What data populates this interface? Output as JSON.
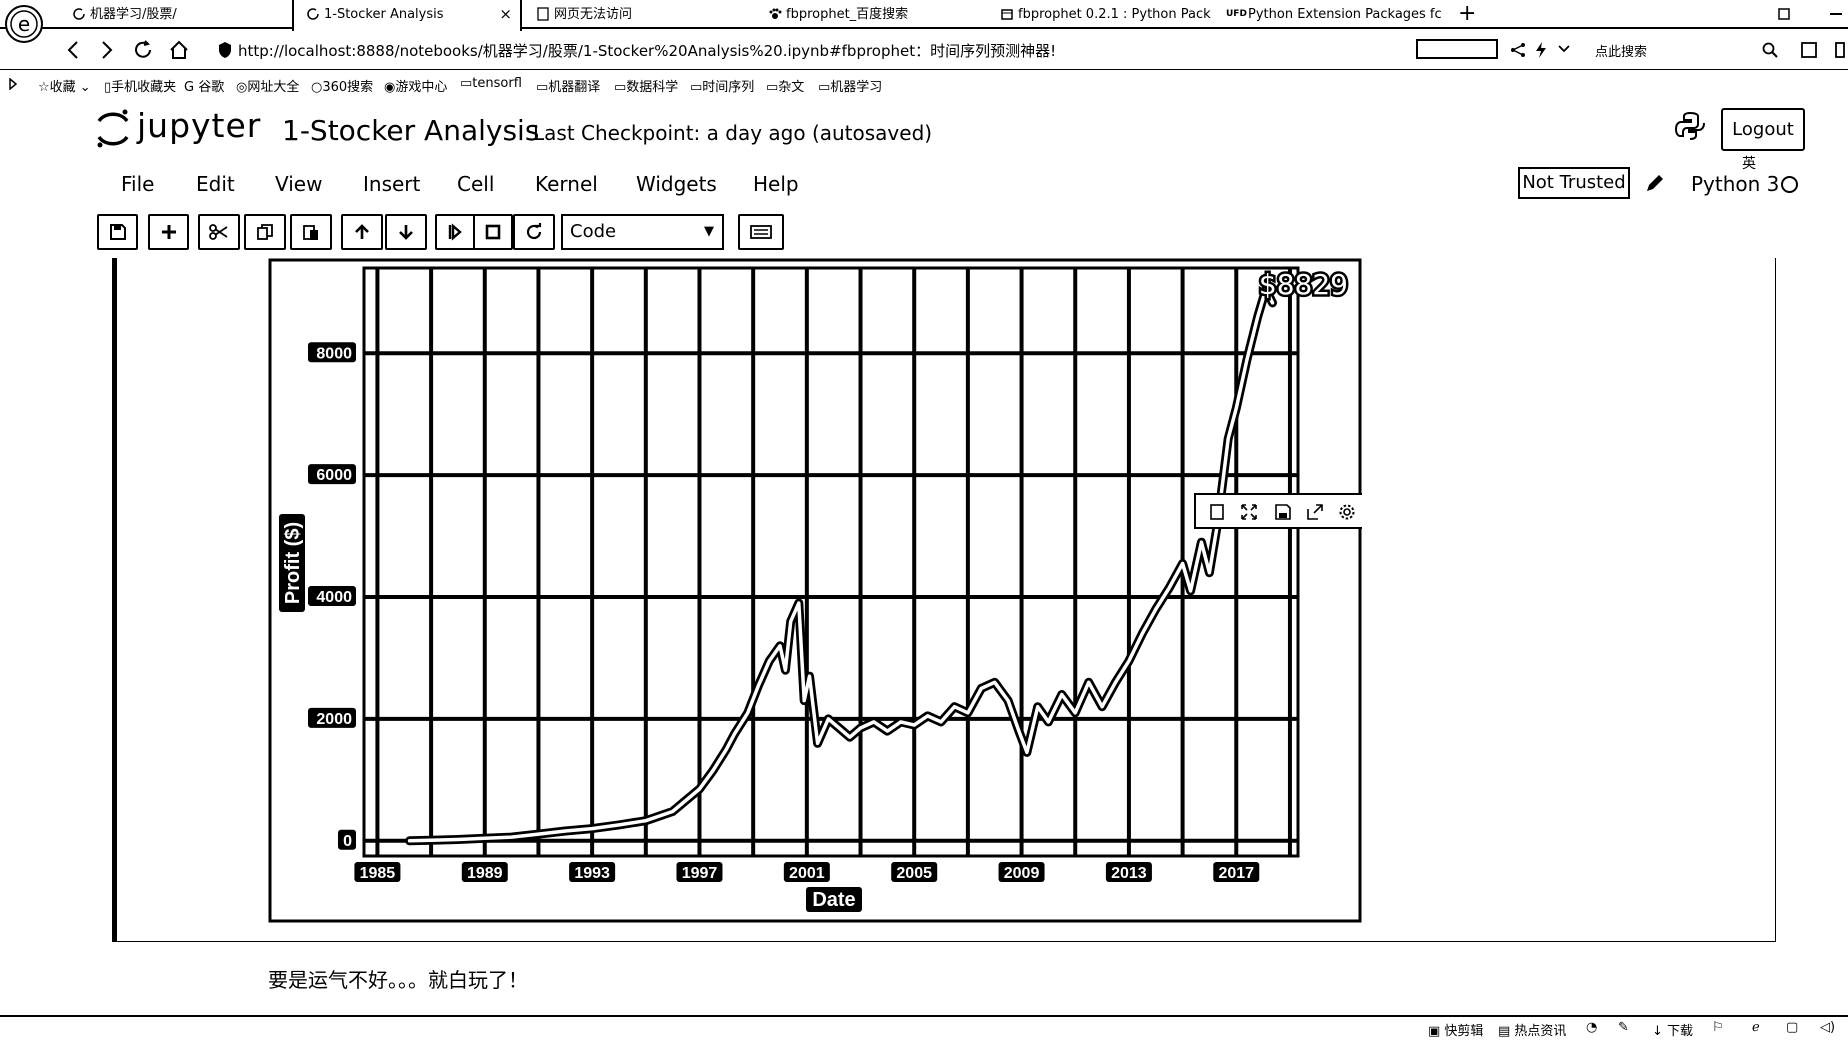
{
  "browser": {
    "tabs": [
      {
        "title": "机器学习/股票/",
        "active": false
      },
      {
        "title": "1-Stocker Analysis",
        "active": true
      },
      {
        "title": "网页无法访问",
        "active": false
      },
      {
        "title": "fbprophet_百度搜索",
        "active": false
      },
      {
        "title": "fbprophet 0.2.1 : Python Pack",
        "active": false
      },
      {
        "title": "Python Extension Packages fc",
        "active": false
      }
    ],
    "ufd_label": "UFD",
    "url": "http://localhost:8888/notebooks/机器学习/股票/1-Stocker%20Analysis%20.ipynb#fbprophet：时间序列预测神器!",
    "search_label": "点此搜索",
    "bookmarks": [
      "收藏",
      "手机收藏夹",
      "谷歌",
      "网址大全",
      "360搜索",
      "游戏中心",
      "tensorfl",
      "机器翻译",
      "数据科学",
      "时间序列",
      "杂文",
      "机器学习"
    ],
    "ext_label": "英"
  },
  "jupyter": {
    "logo_text": "jupyter",
    "notebook_title": "1-Stocker Analysis",
    "checkpoint": "Last Checkpoint: a day ago (autosaved)",
    "logout": "Logout",
    "menu": [
      "File",
      "Edit",
      "View",
      "Insert",
      "Cell",
      "Kernel",
      "Widgets",
      "Help"
    ],
    "not_trusted": "Not Trusted",
    "kernel_name": "Python 3",
    "cell_type": "Code"
  },
  "toolbar_icons": [
    "save-icon",
    "plus-icon",
    "scissors-icon",
    "copy-icon",
    "paste-icon",
    "arrow-up-icon",
    "arrow-down-icon",
    "step-forward-icon",
    "stop-icon",
    "restart-icon",
    "keyboard-icon"
  ],
  "modebar_icons": [
    "download-plot-icon",
    "autoscale-icon",
    "save-icon",
    "edit-in-chart-studio-icon",
    "settings-icon"
  ],
  "chart_data": {
    "type": "line",
    "title": "",
    "xlabel": "Date",
    "ylabel": "Profit ($)",
    "xlim": [
      1984.5,
      2019.3
    ],
    "ylim": [
      -250,
      9400
    ],
    "xticks": [
      "1985",
      "1989",
      "1993",
      "1997",
      "2001",
      "2005",
      "2009",
      "2013",
      "2017"
    ],
    "yticks": [
      "0",
      "2000",
      "4000",
      "6000",
      "8000"
    ],
    "annotation": "$8829",
    "grid": true,
    "series": [
      {
        "x": [
          1986.2,
          1987,
          1988,
          1989,
          1990,
          1991,
          1992,
          1993,
          1994,
          1995,
          1996,
          1997,
          1997.5,
          1998,
          1998.3,
          1998.8,
          1999.2,
          1999.6,
          2000,
          2000.2,
          2000.4,
          2000.7,
          2000.9,
          2001.1,
          2001.4,
          2001.8,
          2002.2,
          2002.6,
          2003,
          2003.5,
          2004,
          2004.5,
          2005,
          2005.5,
          2006,
          2006.5,
          2007,
          2007.5,
          2008,
          2008.5,
          2008.9,
          2009.2,
          2009.6,
          2010,
          2010.5,
          2011,
          2011.5,
          2012,
          2012.5,
          2013,
          2013.5,
          2014,
          2014.5,
          2015,
          2015.3,
          2015.7,
          2016,
          2016.3,
          2016.7,
          2017,
          2017.4,
          2017.8,
          2018.1,
          2018.35
        ],
        "values": [
          0,
          10,
          20,
          40,
          60,
          110,
          160,
          200,
          260,
          330,
          480,
          850,
          1150,
          1500,
          1750,
          2100,
          2550,
          2950,
          3200,
          2800,
          3600,
          3900,
          2300,
          2700,
          1600,
          2000,
          1850,
          1700,
          1850,
          1950,
          1800,
          1950,
          1900,
          2050,
          1950,
          2200,
          2100,
          2500,
          2600,
          2300,
          1800,
          1450,
          2200,
          1950,
          2400,
          2100,
          2600,
          2200,
          2600,
          2950,
          3400,
          3800,
          4150,
          4550,
          4100,
          4900,
          4400,
          5200,
          6600,
          7100,
          7900,
          8600,
          9050,
          8829
        ]
      }
    ]
  },
  "markdown_text": "要是运气不好。。。就白玩了！",
  "statusbar": [
    "快剪辑",
    "热点资讯",
    "下载"
  ]
}
